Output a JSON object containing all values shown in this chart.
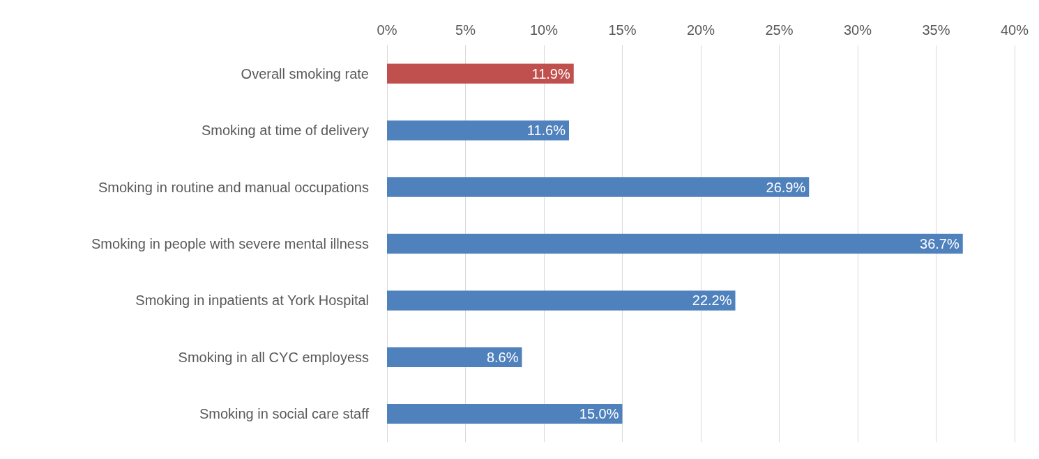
{
  "chart_data": {
    "type": "bar",
    "orientation": "horizontal",
    "categories": [
      "Overall smoking rate",
      "Smoking at time of delivery",
      "Smoking in routine and manual occupations",
      "Smoking in people with severe mental illness",
      "Smoking in inpatients at York Hospital",
      "Smoking in all CYC employess",
      "Smoking in social care staff"
    ],
    "values": [
      11.9,
      11.6,
      26.9,
      36.7,
      22.2,
      8.6,
      15.0
    ],
    "value_labels": [
      "11.9%",
      "11.6%",
      "26.9%",
      "36.7%",
      "22.2%",
      "8.6%",
      "15.0%"
    ],
    "colors": [
      "#c0504d",
      "#4f81bd",
      "#4f81bd",
      "#4f81bd",
      "#4f81bd",
      "#4f81bd",
      "#4f81bd"
    ],
    "xlim": [
      0,
      40
    ],
    "xticks": [
      {
        "value": 0,
        "label": "0%"
      },
      {
        "value": 5,
        "label": "5%"
      },
      {
        "value": 10,
        "label": "10%"
      },
      {
        "value": 15,
        "label": "15%"
      },
      {
        "value": 20,
        "label": "20%"
      },
      {
        "value": 25,
        "label": "25%"
      },
      {
        "value": 30,
        "label": "30%"
      },
      {
        "value": 35,
        "label": "35%"
      },
      {
        "value": 40,
        "label": "40%"
      }
    ],
    "grid": "x"
  }
}
